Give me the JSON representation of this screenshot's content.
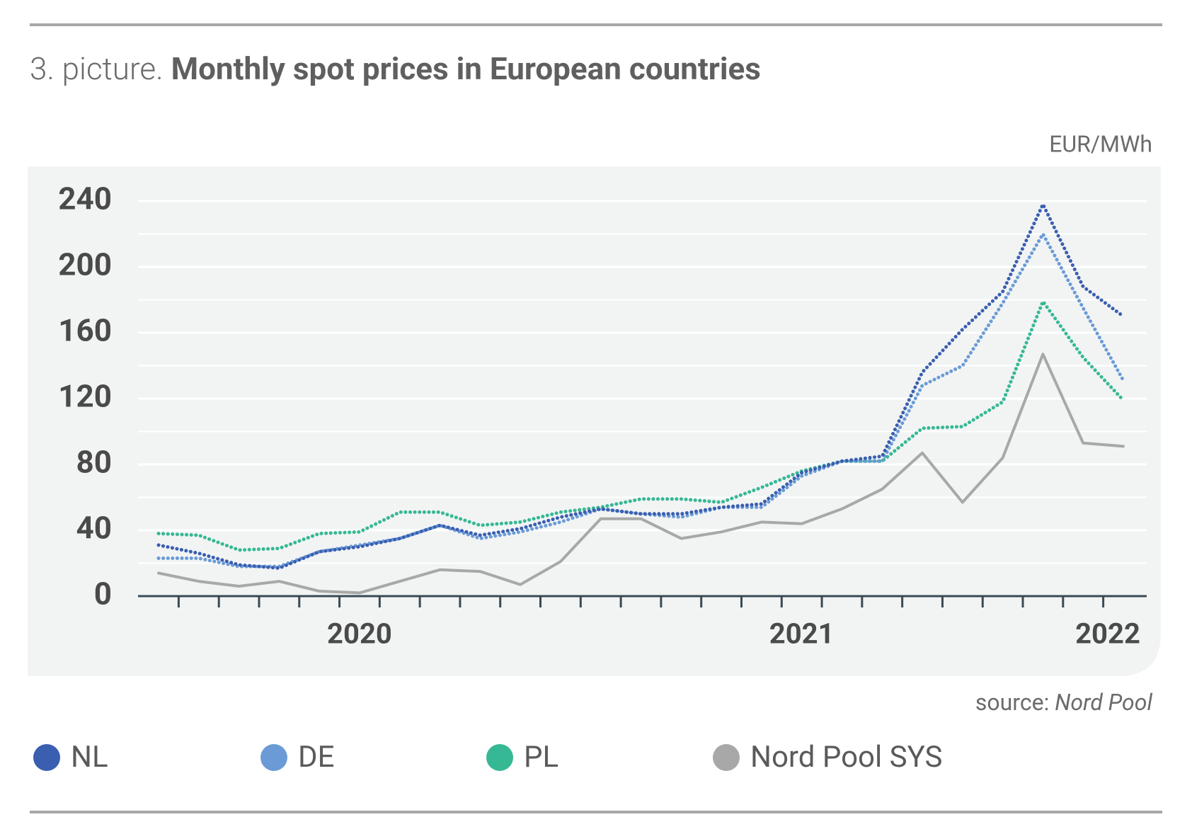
{
  "chart_data": {
    "type": "line",
    "title_prefix": "3. picture.",
    "title": "Monthly spot prices in European countries",
    "unit_label": "EUR/MWh",
    "source_prefix": "source:",
    "source": "Nord Pool",
    "categories": [
      null,
      null,
      null,
      null,
      null,
      "2020",
      null,
      null,
      null,
      null,
      null,
      null,
      null,
      null,
      null,
      null,
      "2021",
      null,
      null,
      null,
      null,
      null,
      null,
      null,
      "2022"
    ],
    "ylim": [
      0,
      240
    ],
    "yticks": [
      0,
      40,
      80,
      120,
      160,
      200,
      240
    ],
    "grid": true,
    "series": [
      {
        "name": "NL",
        "color": "#3a5fb0",
        "dotted": true,
        "values": [
          31,
          26,
          19,
          17,
          27,
          30,
          35,
          43,
          37,
          41,
          48,
          53,
          50,
          50,
          54,
          56,
          75,
          82,
          85,
          136,
          162,
          185,
          238,
          188,
          170
        ]
      },
      {
        "name": "DE",
        "color": "#6a9bd6",
        "dotted": true,
        "values": [
          23,
          23,
          18,
          18,
          27,
          31,
          35,
          43,
          35,
          39,
          45,
          53,
          50,
          48,
          54,
          54,
          73,
          82,
          82,
          128,
          140,
          178,
          220,
          175,
          131
        ]
      },
      {
        "name": "PL",
        "color": "#36b894",
        "dotted": true,
        "values": [
          38,
          37,
          28,
          29,
          38,
          39,
          51,
          51,
          43,
          45,
          51,
          54,
          59,
          59,
          57,
          66,
          76,
          82,
          82,
          102,
          103,
          118,
          179,
          145,
          119
        ]
      },
      {
        "name": "Nord Pool SYS",
        "color": "#a8a8a8",
        "dotted": false,
        "values": [
          14,
          9,
          6,
          9,
          3,
          2,
          9,
          16,
          15,
          7,
          21,
          47,
          47,
          35,
          39,
          45,
          44,
          53,
          65,
          87,
          57,
          84,
          147,
          93,
          91
        ]
      }
    ]
  }
}
